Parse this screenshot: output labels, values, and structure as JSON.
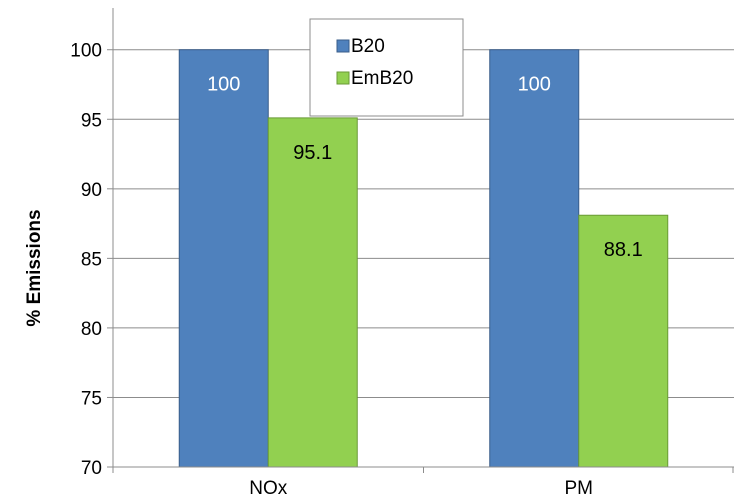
{
  "chart_data": {
    "type": "bar",
    "title": "",
    "xlabel": "",
    "ylabel": "% Emissions",
    "categories": [
      "NOx",
      "PM"
    ],
    "series": [
      {
        "name": "B20",
        "values": [
          100,
          100
        ],
        "color": "#4f81bd",
        "border": "#385d8a",
        "label_color": "#ffffff",
        "labels": [
          "100",
          "100"
        ]
      },
      {
        "name": "EmB20",
        "values": [
          95.1,
          88.1
        ],
        "color": "#92d050",
        "border": "#6a9a36",
        "label_color": "#000000",
        "labels": [
          "95.1",
          "88.1"
        ]
      }
    ],
    "ylim": [
      70,
      103
    ],
    "yticks": [
      70,
      75,
      80,
      85,
      90,
      95,
      100
    ],
    "ytick_labels": [
      "70",
      "75",
      "80",
      "85",
      "90",
      "95",
      "100"
    ],
    "grid": true,
    "legend_position": "top-center"
  }
}
